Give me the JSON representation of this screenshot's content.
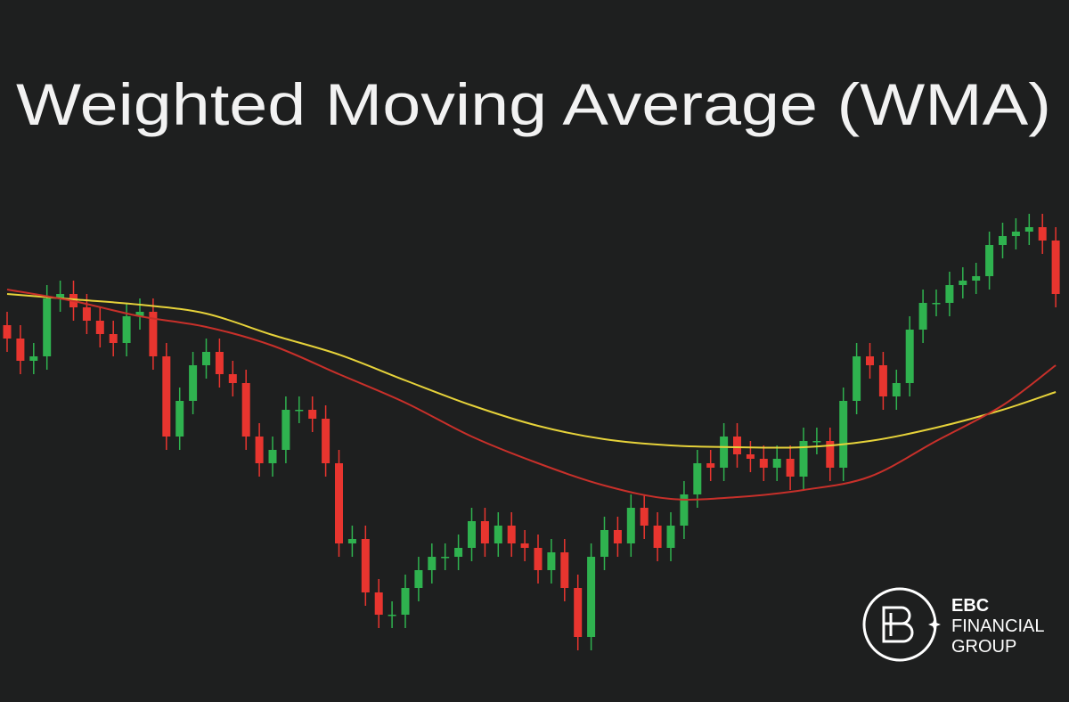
{
  "chart_data": {
    "type": "candlestick",
    "title": "Weighted Moving Average (WMA)",
    "ylim": [
      0,
      100
    ],
    "up_color": "#2fb24f",
    "down_color": "#e8352f",
    "open": [
      75,
      72,
      67,
      68,
      81,
      82,
      79,
      76,
      73,
      71,
      77,
      78,
      68,
      50,
      58,
      66,
      69,
      64,
      62,
      50,
      44,
      47,
      56,
      56,
      54,
      44,
      26,
      27,
      15,
      10,
      10,
      16,
      20,
      23,
      23,
      25,
      31,
      26,
      30,
      26,
      25,
      20,
      24,
      16,
      5,
      23,
      29,
      26,
      34,
      30,
      25,
      30,
      37,
      44,
      43,
      50,
      46,
      45,
      43,
      45,
      41,
      49,
      49,
      43,
      58,
      68,
      66,
      59,
      62,
      74,
      80,
      80,
      84,
      85,
      86,
      93,
      95,
      96,
      97,
      94
    ],
    "high": [
      78,
      75,
      71,
      84,
      85,
      85,
      82,
      79,
      76,
      80,
      81,
      81,
      71,
      61,
      69,
      72,
      72,
      67,
      65,
      53,
      50,
      59,
      59,
      59,
      57,
      47,
      30,
      30,
      18,
      13,
      19,
      23,
      26,
      26,
      28,
      34,
      34,
      33,
      33,
      29,
      28,
      27,
      27,
      19,
      26,
      32,
      32,
      37,
      37,
      33,
      33,
      40,
      47,
      47,
      53,
      53,
      49,
      48,
      48,
      48,
      52,
      52,
      52,
      61,
      71,
      71,
      69,
      65,
      77,
      83,
      83,
      87,
      88,
      89,
      96,
      98,
      99,
      100,
      100,
      97
    ],
    "low": [
      69,
      64,
      64,
      65,
      78,
      76,
      73,
      70,
      68,
      68,
      74,
      65,
      47,
      47,
      55,
      63,
      61,
      59,
      47,
      41,
      41,
      44,
      53,
      51,
      41,
      23,
      23,
      12,
      7,
      7,
      7,
      13,
      17,
      20,
      20,
      22,
      23,
      23,
      23,
      22,
      17,
      17,
      13,
      2,
      2,
      20,
      23,
      23,
      27,
      22,
      22,
      27,
      34,
      40,
      40,
      43,
      42,
      40,
      40,
      38,
      38,
      46,
      40,
      40,
      55,
      63,
      56,
      56,
      59,
      71,
      77,
      77,
      81,
      82,
      83,
      90,
      92,
      93,
      91,
      79
    ],
    "close": [
      72,
      67,
      68,
      81,
      82,
      79,
      76,
      73,
      71,
      77,
      78,
      68,
      50,
      58,
      66,
      69,
      64,
      62,
      50,
      44,
      47,
      56,
      56,
      54,
      44,
      26,
      27,
      15,
      10,
      10,
      16,
      20,
      23,
      23,
      25,
      31,
      26,
      30,
      26,
      25,
      20,
      24,
      16,
      5,
      23,
      29,
      26,
      34,
      30,
      25,
      30,
      37,
      44,
      43,
      50,
      46,
      45,
      43,
      45,
      41,
      49,
      49,
      43,
      58,
      68,
      66,
      59,
      62,
      74,
      80,
      80,
      84,
      85,
      86,
      93,
      95,
      96,
      97,
      94,
      82
    ],
    "lines": [
      {
        "color": "#e6d23a",
        "x": [
          0,
          5,
          10,
          15,
          20,
          25,
          30,
          35,
          40,
          45,
          50,
          55,
          60,
          65,
          70,
          75,
          79
        ],
        "values": [
          82,
          80.8,
          79.6,
          77.6,
          72.8,
          68.4,
          62.6,
          57,
          52.4,
          49.4,
          48,
          47.6,
          47.6,
          49,
          52,
          56,
          60
        ]
      },
      {
        "color": "#c8302a",
        "x": [
          0,
          5,
          10,
          15,
          20,
          25,
          30,
          35,
          40,
          45,
          50,
          55,
          60,
          65,
          70,
          75,
          79
        ],
        "values": [
          83,
          80.4,
          77,
          74.6,
          70.4,
          64,
          57.6,
          50,
          44,
          39,
          36,
          36.4,
          38,
          41,
          49,
          57,
          66
        ]
      }
    ]
  },
  "logo": {
    "line1": "EBC",
    "line2": "FINANCIAL",
    "line3": "GROUP"
  }
}
